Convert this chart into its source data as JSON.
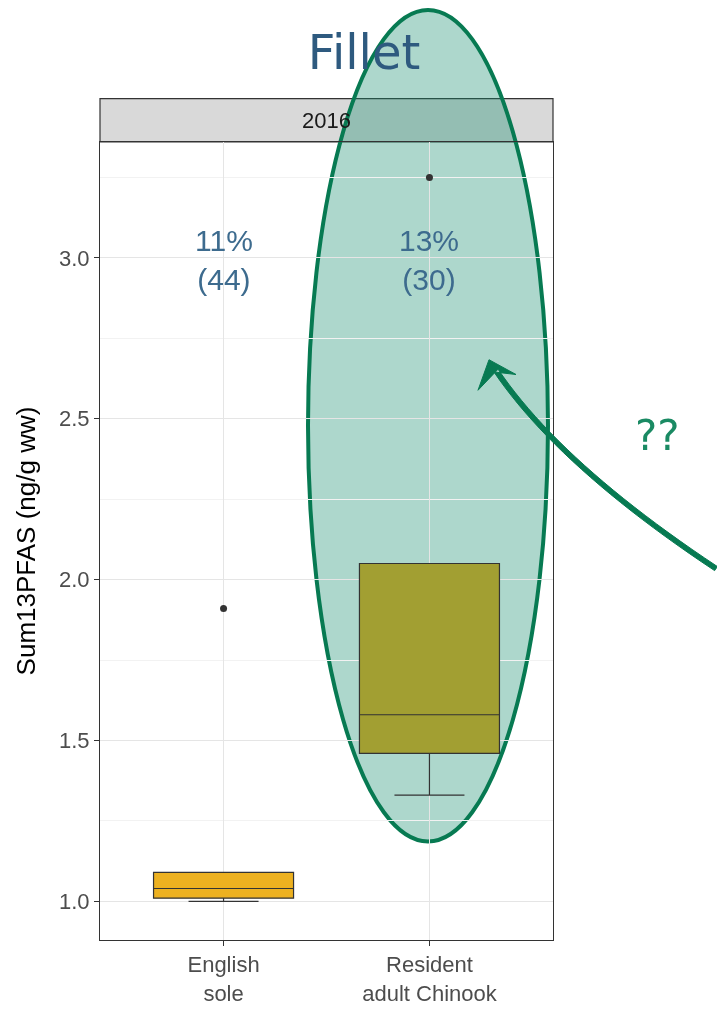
{
  "chart_data": {
    "type": "box",
    "title": "Fillet",
    "subtitle": "2016",
    "ylabel": "Sum13PFAS (ng/g ww)",
    "categories": [
      "English\nsole",
      "Resident\nadult Chinook"
    ],
    "series": [
      {
        "colors": [
          "#edb120",
          "#a29f32"
        ],
        "boxes": [
          {
            "low": 1.0,
            "q1": 1.01,
            "median": 1.04,
            "q3": 1.09,
            "high": 1.09,
            "outliers": [
              1.91
            ]
          },
          {
            "low": 1.33,
            "q1": 1.46,
            "median": 1.58,
            "q3": 2.05,
            "high": 2.05,
            "outliers": [
              3.25
            ]
          }
        ]
      }
    ],
    "ylim": [
      0.88,
      3.36
    ],
    "yticks": [
      {
        "value": 1,
        "label": "1.0"
      },
      1.5,
      {
        "value": 2,
        "label": "2.0"
      },
      2.5,
      {
        "value": 3,
        "label": "3.0"
      }
    ],
    "grid": true,
    "tick_labels": "xy",
    "annotations": [
      "11%\n(44)",
      "13%\n(30)",
      "??"
    ]
  }
}
